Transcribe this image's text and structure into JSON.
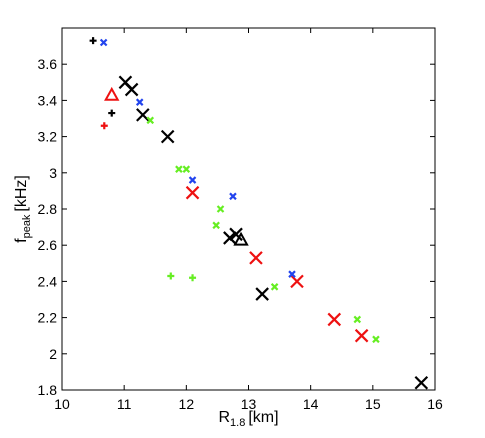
{
  "chart_data": {
    "type": "scatter",
    "title": "",
    "xlabel": {
      "main": "R",
      "sub": "1.8",
      "unit": "[km]"
    },
    "ylabel": {
      "main": "f",
      "sub": "peak",
      "unit": "[kHz]"
    },
    "xlim": [
      10,
      16
    ],
    "ylim": [
      1.8,
      3.8
    ],
    "xticks": [
      10,
      11,
      12,
      13,
      14,
      15,
      16
    ],
    "xtick_labels": [
      "10",
      "11",
      "12",
      "13",
      "14",
      "15",
      "16"
    ],
    "yticks": [
      1.8,
      2.0,
      2.2,
      2.4,
      2.6,
      2.8,
      3.0,
      3.2,
      3.4,
      3.6
    ],
    "ytick_labels": [
      "1.8",
      "2",
      "2.2",
      "2.4",
      "2.6",
      "2.8",
      "3",
      "3.2",
      "3.4",
      "3.6"
    ],
    "grid": false,
    "colors": {
      "black": "#000000",
      "red": "#ee1111",
      "green": "#66ee22",
      "blue": "#2244ee"
    },
    "series": [
      {
        "color": "black",
        "marker": "x-large",
        "points": [
          [
            11.02,
            3.5
          ],
          [
            11.12,
            3.46
          ],
          [
            11.3,
            3.32
          ],
          [
            11.7,
            3.2
          ],
          [
            12.7,
            2.64
          ],
          [
            12.8,
            2.66
          ],
          [
            13.22,
            2.33
          ],
          [
            15.78,
            1.84
          ]
        ]
      },
      {
        "color": "black",
        "marker": "plus",
        "points": [
          [
            10.5,
            3.73
          ],
          [
            10.8,
            3.33
          ]
        ]
      },
      {
        "color": "black",
        "marker": "triangle",
        "points": [
          [
            12.88,
            2.63
          ]
        ]
      },
      {
        "color": "red",
        "marker": "x-large",
        "points": [
          [
            12.1,
            2.89
          ],
          [
            13.12,
            2.53
          ],
          [
            13.78,
            2.4
          ],
          [
            14.38,
            2.19
          ],
          [
            14.82,
            2.1
          ]
        ]
      },
      {
        "color": "red",
        "marker": "plus",
        "points": [
          [
            10.68,
            3.26
          ]
        ]
      },
      {
        "color": "red",
        "marker": "triangle",
        "points": [
          [
            10.8,
            3.43
          ]
        ]
      },
      {
        "color": "green",
        "marker": "x-small",
        "points": [
          [
            11.42,
            3.29
          ],
          [
            11.88,
            3.02
          ],
          [
            12.0,
            3.02
          ],
          [
            12.48,
            2.71
          ],
          [
            12.55,
            2.8
          ],
          [
            13.42,
            2.37
          ],
          [
            14.75,
            2.19
          ],
          [
            15.05,
            2.08
          ]
        ]
      },
      {
        "color": "green",
        "marker": "plus",
        "points": [
          [
            11.75,
            2.43
          ],
          [
            12.1,
            2.42
          ]
        ]
      },
      {
        "color": "blue",
        "marker": "x-small",
        "points": [
          [
            10.67,
            3.72
          ],
          [
            11.25,
            3.39
          ],
          [
            12.1,
            2.96
          ],
          [
            12.75,
            2.87
          ],
          [
            13.7,
            2.44
          ]
        ]
      }
    ]
  }
}
